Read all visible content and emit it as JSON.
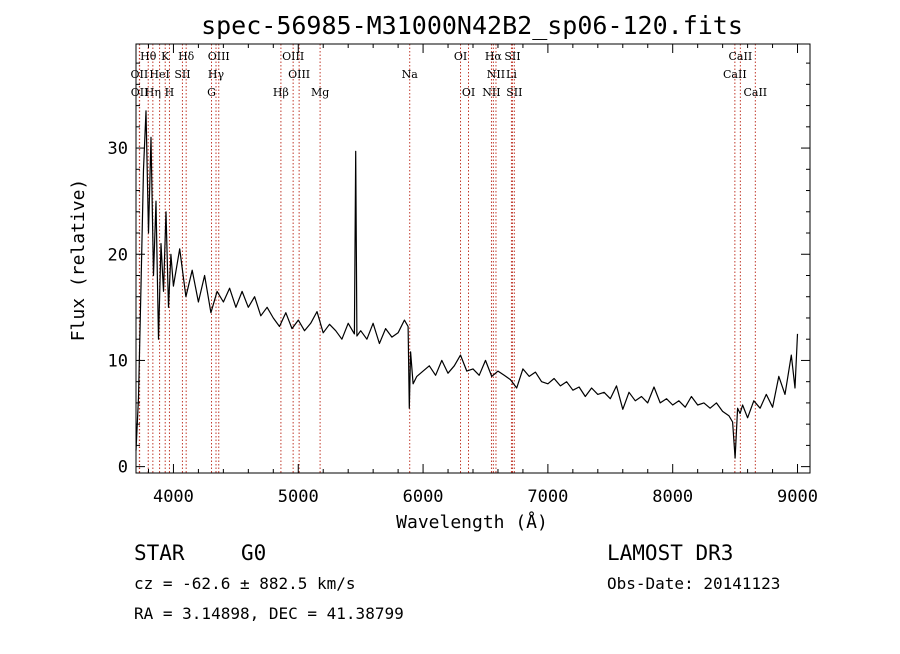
{
  "chart_data": {
    "type": "line",
    "title": "spec-56985-M31000N42B2_sp06-120.fits",
    "xlabel": "Wavelength (Å)",
    "ylabel": "Flux (relative)",
    "xlim": [
      3700,
      9100
    ],
    "ylim": [
      -0.6,
      39.8
    ],
    "x_ticks": [
      4000,
      5000,
      6000,
      7000,
      8000,
      9000
    ],
    "y_ticks": [
      0,
      10,
      20,
      30
    ],
    "series": [
      {
        "name": "spectrum",
        "x": [
          3700,
          3720,
          3740,
          3760,
          3780,
          3800,
          3820,
          3840,
          3860,
          3880,
          3900,
          3920,
          3940,
          3960,
          3980,
          4000,
          4050,
          4100,
          4150,
          4200,
          4250,
          4300,
          4350,
          4400,
          4450,
          4500,
          4550,
          4600,
          4650,
          4700,
          4750,
          4800,
          4850,
          4900,
          4950,
          5000,
          5050,
          5100,
          5150,
          5200,
          5250,
          5300,
          5350,
          5400,
          5450,
          5460,
          5470,
          5500,
          5550,
          5600,
          5650,
          5700,
          5750,
          5800,
          5850,
          5880,
          5890,
          5900,
          5920,
          5950,
          6000,
          6050,
          6100,
          6150,
          6200,
          6250,
          6300,
          6350,
          6400,
          6450,
          6500,
          6550,
          6600,
          6650,
          6700,
          6750,
          6800,
          6850,
          6900,
          6950,
          7000,
          7050,
          7100,
          7150,
          7200,
          7250,
          7300,
          7350,
          7400,
          7450,
          7500,
          7550,
          7600,
          7650,
          7700,
          7750,
          7800,
          7850,
          7900,
          7950,
          8000,
          8050,
          8100,
          8150,
          8200,
          8250,
          8300,
          8350,
          8400,
          8450,
          8480,
          8500,
          8520,
          8540,
          8560,
          8600,
          8650,
          8700,
          8750,
          8800,
          8850,
          8900,
          8950,
          8980,
          9000
        ],
        "y": [
          1.5,
          6.5,
          17.0,
          28.0,
          33.5,
          22.0,
          31.0,
          18.0,
          25.0,
          12.0,
          21.0,
          16.5,
          24.0,
          15.0,
          20.0,
          17.0,
          20.5,
          16.0,
          18.5,
          15.5,
          18.0,
          14.5,
          16.5,
          15.5,
          16.8,
          15.0,
          16.5,
          15.0,
          16.0,
          14.2,
          15.0,
          14.0,
          13.2,
          14.5,
          13.0,
          13.8,
          12.8,
          13.5,
          14.6,
          12.6,
          13.4,
          12.8,
          12.0,
          13.5,
          12.5,
          29.7,
          12.3,
          12.8,
          12.0,
          13.5,
          11.6,
          13.0,
          12.2,
          12.6,
          13.8,
          13.2,
          5.5,
          10.8,
          7.8,
          8.5,
          9.0,
          9.5,
          8.6,
          10.0,
          8.8,
          9.5,
          10.5,
          9.0,
          9.2,
          8.6,
          10.0,
          8.5,
          9.0,
          8.6,
          8.2,
          7.4,
          9.2,
          8.5,
          8.9,
          8.0,
          7.8,
          8.3,
          7.6,
          8.0,
          7.2,
          7.5,
          6.6,
          7.4,
          6.8,
          7.0,
          6.4,
          7.6,
          5.4,
          7.0,
          6.2,
          6.6,
          6.0,
          7.5,
          6.0,
          6.4,
          5.8,
          6.2,
          5.6,
          6.6,
          5.8,
          6.0,
          5.5,
          6.0,
          5.2,
          4.8,
          4.2,
          0.8,
          5.5,
          5.0,
          5.8,
          4.6,
          6.2,
          5.5,
          6.8,
          5.6,
          8.5,
          6.8,
          10.5,
          7.4,
          12.5
        ]
      }
    ],
    "lines_top": [
      {
        "label": "Hθ",
        "x": 3798
      },
      {
        "label": "K",
        "x": 3934
      },
      {
        "label": "Hδ",
        "x": 4102
      },
      {
        "label": "OIII",
        "x": 4363
      },
      {
        "label": "OIII",
        "x": 4959
      },
      {
        "label": "OI",
        "x": 6300
      },
      {
        "label": "Hα",
        "x": 6563
      },
      {
        "label": "SII",
        "x": 6716
      },
      {
        "label": "CaII",
        "x": 8542
      }
    ],
    "lines_mid": [
      {
        "label": "OII",
        "x": 3727
      },
      {
        "label": "HeI",
        "x": 3889
      },
      {
        "label": "SII",
        "x": 4072
      },
      {
        "label": "Hγ",
        "x": 4341
      },
      {
        "label": "OIII",
        "x": 5007
      },
      {
        "label": "Na",
        "x": 5893
      },
      {
        "label": "NII",
        "x": 6584
      },
      {
        "label": "Li",
        "x": 6708
      },
      {
        "label": "CaII",
        "x": 8498
      }
    ],
    "lines_bottom": [
      {
        "label": "OII",
        "x": 3729
      },
      {
        "label": "Hη",
        "x": 3835
      },
      {
        "label": "H",
        "x": 3968
      },
      {
        "label": "G",
        "x": 4305
      },
      {
        "label": "Hβ",
        "x": 4861
      },
      {
        "label": "Mg",
        "x": 5175
      },
      {
        "label": "OI",
        "x": 6364
      },
      {
        "label": "NII",
        "x": 6548
      },
      {
        "label": "SII",
        "x": 6731
      },
      {
        "label": "CaII",
        "x": 8662
      }
    ]
  },
  "info": {
    "class_label": "STAR",
    "subclass": "G0",
    "survey": "LAMOST DR3",
    "cz": "cz = -62.6 ± 882.5 km/s",
    "obs_date": "Obs-Date: 20141123",
    "coords": "RA =   3.14898, DEC =  41.38799"
  }
}
